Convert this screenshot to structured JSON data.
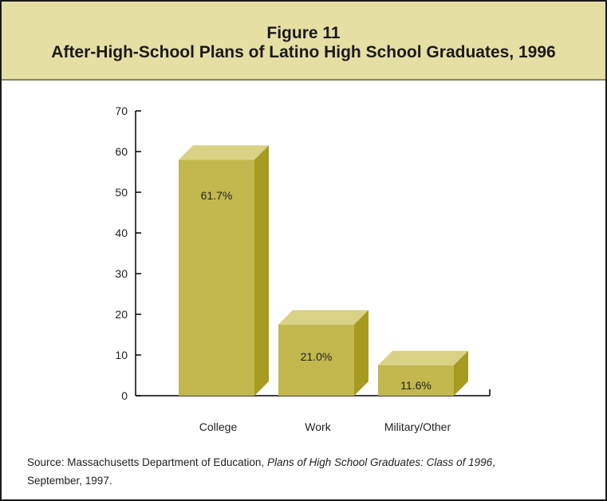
{
  "figure": {
    "label": "Figure 11",
    "title": "After-High-School Plans of Latino High School Graduates, 1996"
  },
  "chart_data": {
    "type": "bar",
    "categories": [
      "College",
      "Work",
      "Military/Other"
    ],
    "values": [
      61.7,
      21.0,
      11.6
    ],
    "drawn_heights": [
      58,
      17.5,
      7.5
    ],
    "value_labels": [
      "61.7%",
      "21.0%",
      "11.6%"
    ],
    "ylim": [
      0,
      70
    ],
    "yticks": [
      "0",
      "10",
      "20",
      "30",
      "40",
      "50",
      "60",
      "70"
    ],
    "bar_color": "#c2b84e",
    "bar_top_color": "#d9d184",
    "bar_side_color": "#a69b20",
    "xlabel": "",
    "ylabel": ""
  },
  "source": {
    "prefix": "Source:",
    "publisher": "Massachusetts Department of Education,",
    "publication": "Plans of High School Graduates: Class of 1996",
    "date_line": "September, 1997."
  }
}
